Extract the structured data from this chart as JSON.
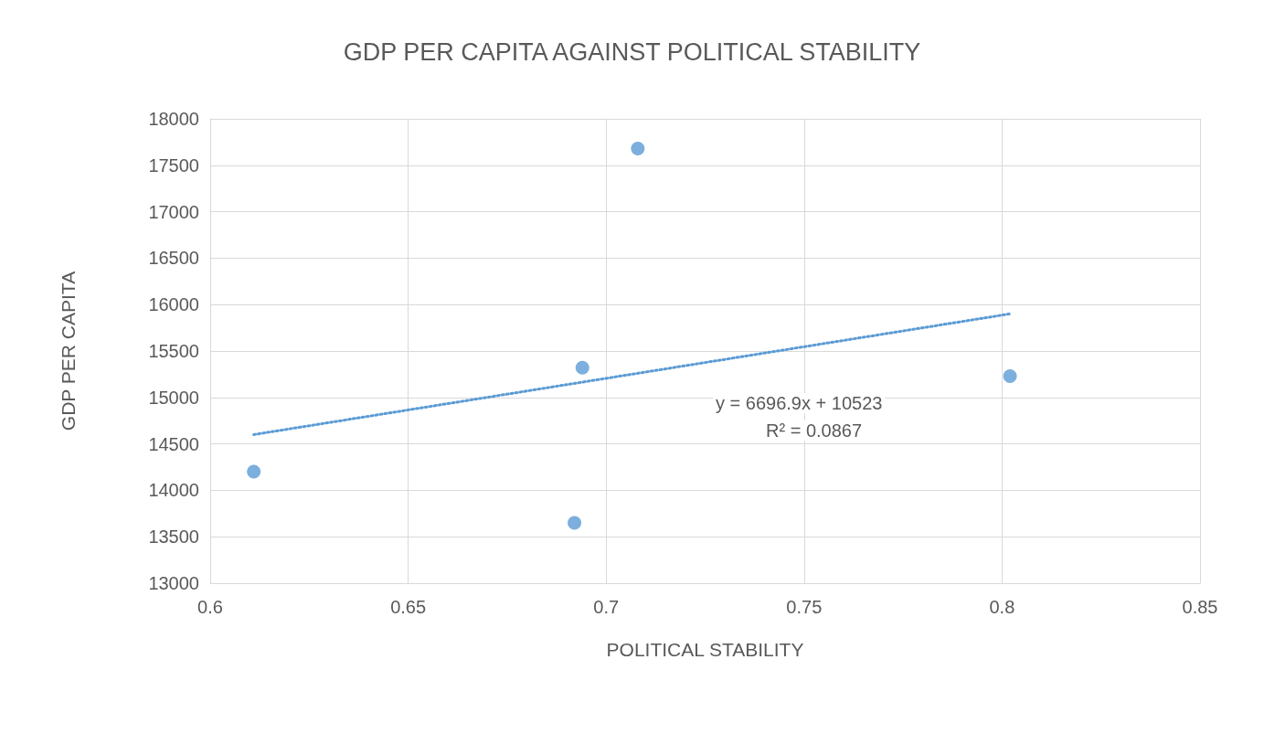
{
  "chart_data": {
    "type": "scatter",
    "title": "GDP PER CAPITA AGAINST POLITICAL STABILITY",
    "xlabel": "POLITICAL STABILITY",
    "ylabel": "GDP PER CAPITA",
    "series": [
      {
        "color": "#5b9bd5",
        "x": [
          0.611,
          0.692,
          0.694,
          0.708,
          0.802
        ],
        "values": [
          14200,
          13650,
          15320,
          17680,
          15230
        ],
        "marker": "circle"
      },
      {
        "type": "line",
        "color": "#5b9bd5",
        "x": [
          0.611,
          0.802
        ],
        "values": [
          14600,
          15900
        ],
        "line_style": "dotted",
        "marker": "none"
      }
    ],
    "annotations": [
      "y = 6696.9x + 10523",
      "R² = 0.0867"
    ],
    "xlim": [
      0.6,
      0.85
    ],
    "xticks": [
      0.6,
      0.65,
      0.7,
      0.75,
      0.8,
      0.85
    ],
    "ylim": [
      13000,
      18000
    ],
    "yticks": [
      13000,
      13500,
      14000,
      14500,
      15000,
      15500,
      16000,
      16500,
      17000,
      17500,
      18000
    ],
    "grid": true
  }
}
